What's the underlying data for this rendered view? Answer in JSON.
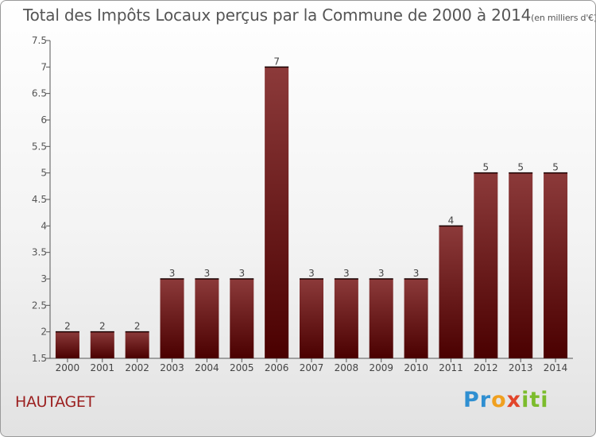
{
  "title": "Total des Impôts Locaux perçus par la Commune de 2000 à 2014",
  "unit_label": "(en milliers d'€)",
  "commune": "HAUTAGET",
  "logo": {
    "p1": "Pr",
    "p2": "o",
    "p3": "x",
    "p4": "iti"
  },
  "colors": {
    "bar_top": "#8c3a3a",
    "bar_bottom": "#4a0000",
    "commune_text": "#9b1f1f"
  },
  "chart_data": {
    "type": "bar",
    "title": "Total des Impôts Locaux perçus par la Commune de 2000 à 2014 (en milliers d'€)",
    "xlabel": "",
    "ylabel": "",
    "categories": [
      "2000",
      "2001",
      "2002",
      "2003",
      "2004",
      "2005",
      "2006",
      "2007",
      "2008",
      "2009",
      "2010",
      "2011",
      "2012",
      "2013",
      "2014"
    ],
    "values": [
      2,
      2,
      2,
      3,
      3,
      3,
      7,
      3,
      3,
      3,
      3,
      4,
      5,
      5,
      5
    ],
    "data_labels": [
      "2",
      "2",
      "2",
      "3",
      "3",
      "3",
      "7",
      "3",
      "3",
      "3",
      "3",
      "4",
      "5",
      "5",
      "5"
    ],
    "ylim": [
      1.5,
      7.5
    ],
    "yticks": [
      1.5,
      2,
      2.5,
      3,
      3.5,
      4,
      4.5,
      5,
      5.5,
      6,
      6.5,
      7,
      7.5
    ],
    "ytick_labels": [
      "1.5",
      "2",
      "2.5",
      "3",
      "3.5",
      "4",
      "4.5",
      "5",
      "5.5",
      "6",
      "6.5",
      "7",
      "7.5"
    ],
    "grid": false
  }
}
